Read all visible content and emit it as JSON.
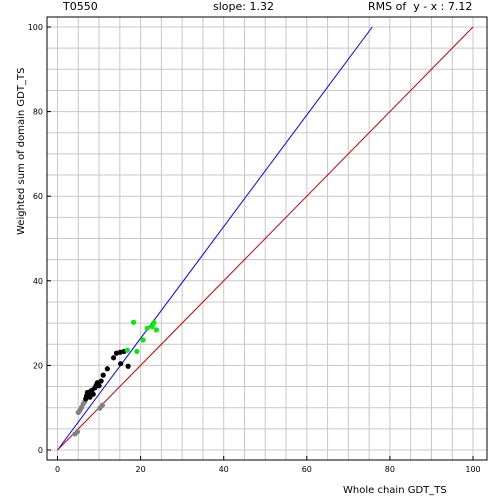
{
  "header": {
    "target": "T0550",
    "slope_text": "slope: 1.32",
    "rms_text": "RMS of  y - x : 7.12"
  },
  "chart_data": {
    "type": "scatter",
    "xlabel": "Whole chain GDT_TS",
    "ylabel": "Weighted sum of domain GDT_TS",
    "xlim": [
      0,
      100
    ],
    "ylim": [
      0,
      100
    ],
    "x_ticks": [
      0,
      20,
      40,
      60,
      80,
      100
    ],
    "y_ticks": [
      0,
      20,
      40,
      60,
      80,
      100
    ],
    "grid": true,
    "lines": [
      {
        "name": "y = 1.32x",
        "slope": 1.32,
        "color": "#0000ff"
      },
      {
        "name": "y = x",
        "slope": 1.0,
        "color": "#cc0000"
      }
    ],
    "series": [
      {
        "color": "#808080",
        "points": [
          [
            4.2,
            3.8
          ],
          [
            4.8,
            4.3
          ],
          [
            5.0,
            8.9
          ],
          [
            5.4,
            9.4
          ],
          [
            5.8,
            10.1
          ],
          [
            6.2,
            10.9
          ],
          [
            6.6,
            11.5
          ],
          [
            10.2,
            9.9
          ],
          [
            10.8,
            10.6
          ]
        ]
      },
      {
        "color": "#000000",
        "points": [
          [
            6.8,
            12.1
          ],
          [
            7.0,
            12.8
          ],
          [
            7.2,
            13.6
          ],
          [
            7.5,
            13.1
          ],
          [
            7.8,
            12.5
          ],
          [
            8.0,
            13.9
          ],
          [
            8.3,
            14.1
          ],
          [
            8.6,
            13.2
          ],
          [
            9.0,
            14.7
          ],
          [
            9.3,
            15.3
          ],
          [
            9.6,
            15.9
          ],
          [
            10.0,
            15.2
          ],
          [
            10.5,
            16.3
          ],
          [
            11.0,
            17.7
          ],
          [
            12.0,
            19.2
          ],
          [
            13.5,
            21.8
          ],
          [
            14.2,
            22.9
          ],
          [
            15.1,
            23.1
          ],
          [
            16.0,
            23.3
          ],
          [
            15.2,
            20.4
          ],
          [
            17.0,
            19.8
          ]
        ]
      },
      {
        "color": "#00ee00",
        "points": [
          [
            16.8,
            23.6
          ],
          [
            18.3,
            30.2
          ],
          [
            19.1,
            23.3
          ],
          [
            20.6,
            26.0
          ],
          [
            21.6,
            28.8
          ],
          [
            23.2,
            30.1
          ],
          [
            23.8,
            28.4
          ],
          [
            22.8,
            29.2
          ]
        ]
      }
    ]
  }
}
